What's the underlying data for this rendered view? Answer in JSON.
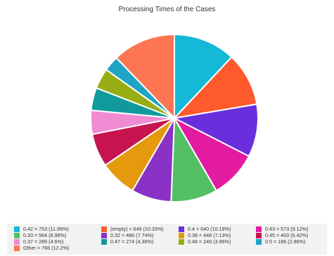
{
  "chart_data": {
    "type": "pie",
    "title": "Processing Times of the Cases",
    "legend_position": "bottom",
    "slices": [
      {
        "label": "0.42",
        "value": 753,
        "percent": "11.99%",
        "color": "#16b8d8",
        "legend_text": "0.42 = 753 (11.99%)"
      },
      {
        "label": "(empty)",
        "value": 649,
        "percent": "10.33%",
        "color": "#ff5a2c",
        "legend_text": "(empty) = 649 (10.33%)"
      },
      {
        "label": "0.4",
        "value": 640,
        "percent": "10.19%",
        "color": "#6a2fdc",
        "legend_text": "0.4 = 640 (10.19%)"
      },
      {
        "label": "0.43",
        "value": 573,
        "percent": "9.12%",
        "color": "#e31ba1",
        "legend_text": "0.43 = 573 (9.12%)"
      },
      {
        "label": "0.33",
        "value": 564,
        "percent": "8.98%",
        "color": "#53c064",
        "legend_text": "0.33 = 564 (8.98%)"
      },
      {
        "label": "0.32",
        "value": 486,
        "percent": "7.74%",
        "color": "#8a31c6",
        "legend_text": "0.32 = 486 (7.74%)"
      },
      {
        "label": "0.38",
        "value": 448,
        "percent": "7.13%",
        "color": "#e49a0c",
        "legend_text": "0.38 = 448 (7.13%)"
      },
      {
        "label": "0.45",
        "value": 403,
        "percent": "6.42%",
        "color": "#c5144f",
        "legend_text": "0.45 = 403 (6.42%)"
      },
      {
        "label": "0.37",
        "value": 289,
        "percent": "4.6%",
        "color": "#ef8ad3",
        "legend_text": "0.37 = 289 (4.6%)"
      },
      {
        "label": "0.47",
        "value": 274,
        "percent": "4.36%",
        "color": "#119a9c",
        "legend_text": "0.47 = 274 (4.36%)"
      },
      {
        "label": "0.48",
        "value": 249,
        "percent": "3.96%",
        "color": "#98ad14",
        "legend_text": "0.48 = 249 (3.96%)"
      },
      {
        "label": "0.5",
        "value": 186,
        "percent": "2.96%",
        "color": "#1fa4c6",
        "legend_text": "0.5 = 186 (2.96%)"
      },
      {
        "label": "Other",
        "value": 766,
        "percent": "12.2%",
        "color": "#fd7553",
        "legend_text": "Other = 766 (12.2%)"
      }
    ]
  }
}
